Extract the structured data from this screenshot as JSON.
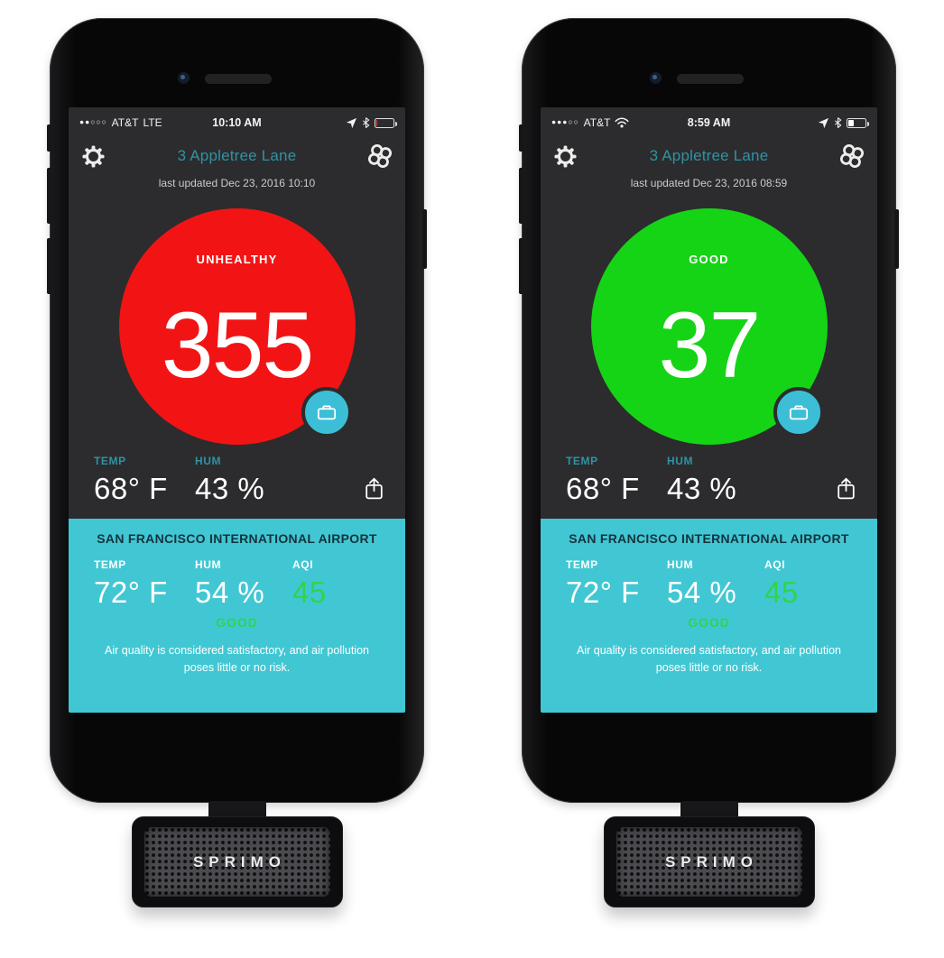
{
  "colors": {
    "screen_bg": "#2c2c2e",
    "accent_teal_text": "#2e93a4",
    "panel_teal": "#41c7d3",
    "button_teal": "#3cbfd6",
    "panel_title_dark": "#14333d",
    "aqi_green": "#2fd44f",
    "unhealthy_red": "#f21414",
    "good_green": "#15d415"
  },
  "phones": [
    {
      "status_bar": {
        "signal_dots": "●●○○○",
        "carrier": "AT&T",
        "network": "LTE",
        "time": "10:10 AM",
        "battery_percent": 8,
        "battery_color": "#d8453a"
      },
      "header": {
        "location": "3 Appletree Lane",
        "last_updated": "last updated Dec 23, 2016 10:10"
      },
      "aqi": {
        "status": "UNHEALTHY",
        "value": "355",
        "circle_color": "#f21414"
      },
      "local": {
        "temp_label": "TEMP",
        "temp_value": "68° F",
        "hum_label": "HUM",
        "hum_value": "43 %"
      },
      "station": {
        "name": "SAN FRANCISCO INTERNATIONAL AIRPORT",
        "temp_label": "TEMP",
        "temp_value": "72° F",
        "hum_label": "HUM",
        "hum_value": "54 %",
        "aqi_label": "AQI",
        "aqi_value": "45",
        "aqi_status": "GOOD",
        "description": "Air quality is considered satisfactory, and air pollution poses little or no risk."
      },
      "device_label": "SPRIMO"
    },
    {
      "status_bar": {
        "signal_dots": "●●●○○",
        "carrier": "AT&T",
        "network": "",
        "time": "8:59 AM",
        "battery_percent": 35,
        "battery_color": "#ffffff"
      },
      "header": {
        "location": "3 Appletree Lane",
        "last_updated": "last updated Dec 23, 2016 08:59"
      },
      "aqi": {
        "status": "GOOD",
        "value": "37",
        "circle_color": "#15d415"
      },
      "local": {
        "temp_label": "TEMP",
        "temp_value": "68° F",
        "hum_label": "HUM",
        "hum_value": "43 %"
      },
      "station": {
        "name": "SAN FRANCISCO INTERNATIONAL AIRPORT",
        "temp_label": "TEMP",
        "temp_value": "72° F",
        "hum_label": "HUM",
        "hum_value": "54 %",
        "aqi_label": "AQI",
        "aqi_value": "45",
        "aqi_status": "GOOD",
        "description": "Air quality is considered satisfactory, and air pollution poses little or no risk."
      },
      "device_label": "SPRIMO"
    }
  ]
}
